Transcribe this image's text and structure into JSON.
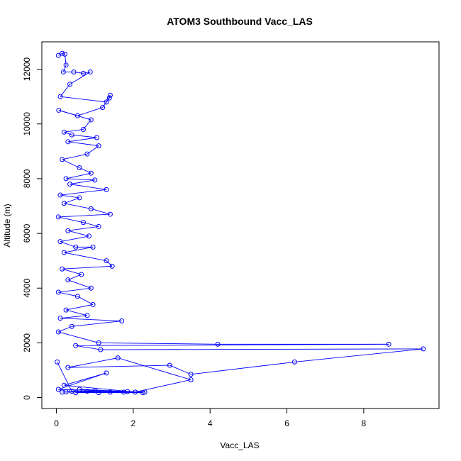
{
  "chart_data": {
    "type": "scatter",
    "title": "ATOM3 Southbound Vacc_LAS",
    "xlabel": "Vacc_LAS",
    "ylabel": "Altitude (m)",
    "xlim": [
      -0.38,
      9.96
    ],
    "ylim": [
      -400,
      13000
    ],
    "x_ticks": [
      0,
      2,
      4,
      6,
      8
    ],
    "y_ticks": [
      0,
      2000,
      4000,
      6000,
      8000,
      10000,
      12000
    ],
    "marker": "open-circle",
    "connected": true,
    "series_color": "#0000ff",
    "series": [
      {
        "values": [
          [
            0.05,
            12500
          ],
          [
            0.15,
            12580
          ],
          [
            0.22,
            12550
          ],
          [
            0.25,
            12150
          ],
          [
            0.18,
            11900
          ],
          [
            0.45,
            11900
          ],
          [
            0.7,
            11850
          ],
          [
            0.88,
            11900
          ],
          [
            0.35,
            11450
          ],
          [
            0.1,
            11000
          ],
          [
            1.3,
            10800
          ],
          [
            1.4,
            11050
          ],
          [
            1.38,
            10950
          ],
          [
            1.2,
            10600
          ],
          [
            0.55,
            10300
          ],
          [
            0.06,
            10500
          ],
          [
            0.9,
            10150
          ],
          [
            0.7,
            9800
          ],
          [
            0.2,
            9700
          ],
          [
            0.4,
            9600
          ],
          [
            1.05,
            9500
          ],
          [
            0.3,
            9350
          ],
          [
            1.1,
            9200
          ],
          [
            0.8,
            8900
          ],
          [
            0.15,
            8700
          ],
          [
            0.6,
            8400
          ],
          [
            0.9,
            8200
          ],
          [
            0.25,
            8000
          ],
          [
            1.0,
            7950
          ],
          [
            0.35,
            7800
          ],
          [
            1.3,
            7600
          ],
          [
            0.1,
            7400
          ],
          [
            0.6,
            7300
          ],
          [
            0.2,
            7100
          ],
          [
            0.9,
            6900
          ],
          [
            1.4,
            6700
          ],
          [
            0.05,
            6600
          ],
          [
            0.7,
            6400
          ],
          [
            1.1,
            6250
          ],
          [
            0.3,
            6100
          ],
          [
            0.85,
            5900
          ],
          [
            0.1,
            5700
          ],
          [
            0.5,
            5500
          ],
          [
            0.95,
            5500
          ],
          [
            0.2,
            5300
          ],
          [
            1.3,
            5000
          ],
          [
            1.45,
            4800
          ],
          [
            0.15,
            4700
          ],
          [
            0.65,
            4500
          ],
          [
            0.3,
            4300
          ],
          [
            0.9,
            4000
          ],
          [
            0.05,
            3850
          ],
          [
            0.55,
            3700
          ],
          [
            0.95,
            3400
          ],
          [
            0.25,
            3200
          ],
          [
            0.8,
            3000
          ],
          [
            0.1,
            2900
          ],
          [
            1.7,
            2800
          ],
          [
            0.4,
            2600
          ],
          [
            0.05,
            2400
          ],
          [
            1.1,
            2000
          ],
          [
            4.2,
            1950
          ],
          [
            8.65,
            1950
          ],
          [
            0.5,
            1900
          ],
          [
            1.15,
            1750
          ],
          [
            9.55,
            1780
          ],
          [
            6.2,
            1300
          ],
          [
            3.5,
            850
          ],
          [
            2.95,
            1180
          ],
          [
            0.3,
            1100
          ],
          [
            1.6,
            1450
          ],
          [
            3.5,
            650
          ],
          [
            2.05,
            200
          ],
          [
            0.2,
            450
          ],
          [
            1.3,
            900
          ],
          [
            0.05,
            300
          ],
          [
            2.3,
            200
          ],
          [
            1.0,
            250
          ],
          [
            0.15,
            200
          ],
          [
            1.75,
            200
          ],
          [
            0.5,
            180
          ],
          [
            1.4,
            200
          ],
          [
            0.8,
            230
          ],
          [
            0.25,
            210
          ],
          [
            1.85,
            220
          ],
          [
            0.6,
            300
          ],
          [
            2.25,
            180
          ],
          [
            1.1,
            180
          ],
          [
            0.4,
            230
          ],
          [
            0.02,
            1300
          ]
        ]
      }
    ],
    "grid": false
  }
}
